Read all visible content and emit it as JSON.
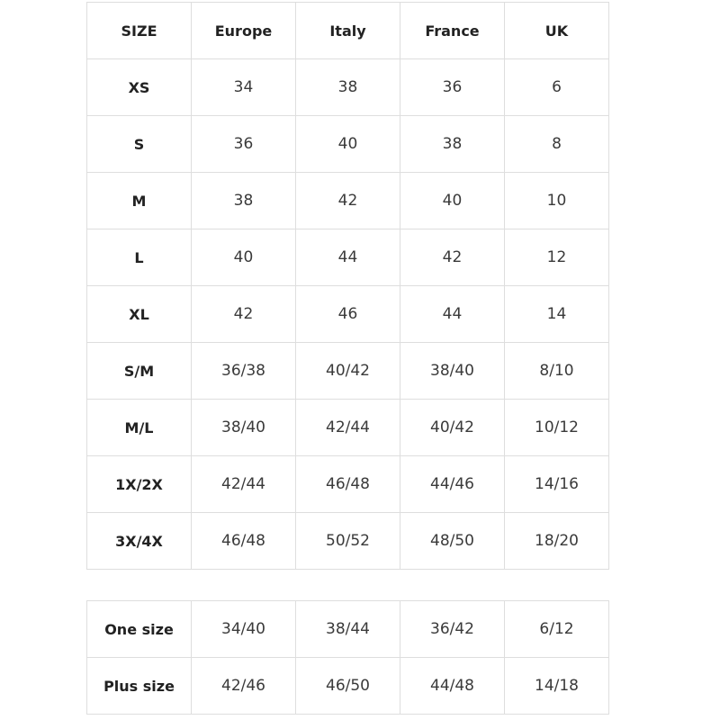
{
  "headers": [
    "SIZE",
    "Europe",
    "Italy",
    "France",
    "UK"
  ],
  "rows": [
    [
      "XS",
      "34",
      "38",
      "36",
      "6"
    ],
    [
      "S",
      "36",
      "40",
      "38",
      "8"
    ],
    [
      "M",
      "38",
      "42",
      "40",
      "10"
    ],
    [
      "L",
      "40",
      "44",
      "42",
      "12"
    ],
    [
      "XL",
      "42",
      "46",
      "44",
      "14"
    ],
    [
      "S/M",
      "36/38",
      "40/42",
      "38/40",
      "8/10"
    ],
    [
      "M/L",
      "38/40",
      "42/44",
      "40/42",
      "10/12"
    ],
    [
      "1X/2X",
      "42/44",
      "46/48",
      "44/46",
      "14/16"
    ],
    [
      "3X/4X",
      "46/48",
      "50/52",
      "48/50",
      "18/20"
    ]
  ],
  "rows2": [
    [
      "One size",
      "34/40",
      "38/44",
      "36/42",
      "6/12"
    ],
    [
      "Plus size",
      "42/46",
      "46/50",
      "44/48",
      "14/18"
    ]
  ]
}
